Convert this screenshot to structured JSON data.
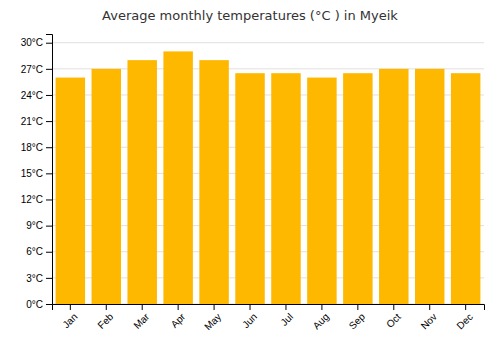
{
  "chart_data": {
    "type": "bar",
    "title": "Average monthly temperatures (°C ) in Myeik",
    "categories": [
      "Jan",
      "Feb",
      "Mar",
      "Apr",
      "May",
      "Jun",
      "Jul",
      "Aug",
      "Sep",
      "Oct",
      "Nov",
      "Dec"
    ],
    "values": [
      26.0,
      27.0,
      28.0,
      29.0,
      28.0,
      26.5,
      26.5,
      26.0,
      26.5,
      27.0,
      27.0,
      26.5
    ],
    "color": "#FFB800",
    "ylim": [
      0,
      31
    ],
    "yticks": [
      {
        "value": 0,
        "label": "0°C"
      },
      {
        "value": 3,
        "label": "3°C"
      },
      {
        "value": 6,
        "label": "6°C"
      },
      {
        "value": 9,
        "label": "9°C"
      },
      {
        "value": 12,
        "label": "12°C"
      },
      {
        "value": 15,
        "label": "15°C"
      },
      {
        "value": 18,
        "label": "18°C"
      },
      {
        "value": 21,
        "label": "21°C"
      },
      {
        "value": 24,
        "label": "24°C"
      },
      {
        "value": 27,
        "label": "27°C"
      },
      {
        "value": 30,
        "label": "30°C"
      }
    ],
    "grid": true
  }
}
